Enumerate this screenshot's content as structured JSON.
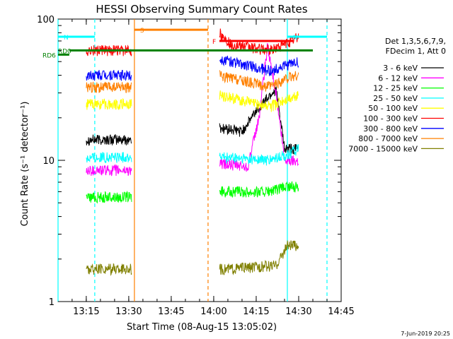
{
  "chart_data": {
    "type": "line",
    "title": "HESSI Observing Summary Count Rates",
    "xlabel": "Start Time (08-Aug-15 13:05:02)",
    "ylabel": "Count Rate (s⁻¹ detector⁻¹)",
    "yscale": "log",
    "ylim": [
      1,
      100
    ],
    "xlim": [
      "13:05:02",
      "14:45:00"
    ],
    "x_ticks": [
      "13:15",
      "13:30",
      "13:45",
      "14:00",
      "14:15",
      "14:30",
      "14:45"
    ],
    "y_ticks": [
      "1",
      "10",
      "100"
    ],
    "legend": {
      "header": [
        "Det 1,3,5,6,7,9,",
        "FDecim 1, Att 0"
      ],
      "placement": "right"
    },
    "series": [
      {
        "name": "3 - 6 keV",
        "color": "#000000",
        "values": [
          [
            "13:15",
            14
          ],
          [
            "13:31",
            14
          ],
          [
            "14:02",
            17
          ],
          [
            "14:10",
            16
          ],
          [
            "14:16",
            24
          ],
          [
            "14:22",
            32
          ],
          [
            "14:25",
            12
          ],
          [
            "14:30",
            12
          ]
        ]
      },
      {
        "name": "6 - 12 keV",
        "color": "#ff00ff",
        "values": [
          [
            "13:15",
            8.5
          ],
          [
            "13:31",
            8.5
          ],
          [
            "14:02",
            9.5
          ],
          [
            "14:12",
            9
          ],
          [
            "14:16",
            20
          ],
          [
            "14:19",
            65
          ],
          [
            "14:22",
            30
          ],
          [
            "14:25",
            10
          ],
          [
            "14:30",
            10
          ]
        ]
      },
      {
        "name": "12 - 25 keV",
        "color": "#00ff00",
        "values": [
          [
            "13:15",
            5.5
          ],
          [
            "13:31",
            5.5
          ],
          [
            "14:02",
            6
          ],
          [
            "14:20",
            6
          ],
          [
            "14:26",
            6.5
          ],
          [
            "14:30",
            6.5
          ]
        ]
      },
      {
        "name": "25 - 50 keV",
        "color": "#00ffff",
        "values": [
          [
            "13:15",
            10.5
          ],
          [
            "13:31",
            10.5
          ],
          [
            "14:02",
            10.5
          ],
          [
            "14:20",
            10
          ],
          [
            "14:26",
            11
          ],
          [
            "14:30",
            12
          ]
        ]
      },
      {
        "name": "50 - 100 keV",
        "color": "#ffff00",
        "values": [
          [
            "13:15",
            25
          ],
          [
            "13:31",
            25
          ],
          [
            "14:02",
            29
          ],
          [
            "14:20",
            24
          ],
          [
            "14:26",
            27
          ],
          [
            "14:30",
            29
          ]
        ]
      },
      {
        "name": "100 - 300 keV",
        "color": "#ff0000",
        "values": [
          [
            "13:15",
            60
          ],
          [
            "13:31",
            60
          ],
          [
            "14:02",
            80
          ],
          [
            "14:06",
            66
          ],
          [
            "14:20",
            60
          ],
          [
            "14:26",
            68
          ],
          [
            "14:30",
            75
          ]
        ]
      },
      {
        "name": "300 - 800 keV",
        "color": "#0000ff",
        "values": [
          [
            "13:15",
            40
          ],
          [
            "13:31",
            40
          ],
          [
            "14:02",
            52
          ],
          [
            "14:10",
            48
          ],
          [
            "14:20",
            43
          ],
          [
            "14:26",
            47
          ],
          [
            "14:30",
            50
          ]
        ]
      },
      {
        "name": "800 - 7000 keV",
        "color": "#ff8000",
        "values": [
          [
            "13:15",
            33
          ],
          [
            "13:31",
            33
          ],
          [
            "14:02",
            40
          ],
          [
            "14:10",
            37
          ],
          [
            "14:20",
            33
          ],
          [
            "14:26",
            38
          ],
          [
            "14:30",
            40
          ]
        ]
      },
      {
        "name": "7000 - 15000 keV",
        "color": "#808000",
        "values": [
          [
            "13:15",
            1.7
          ],
          [
            "13:31",
            1.7
          ],
          [
            "14:04",
            1.7
          ],
          [
            "14:22",
            1.8
          ],
          [
            "14:26",
            2.5
          ],
          [
            "14:30",
            2.5
          ]
        ]
      }
    ],
    "annotations": [
      {
        "label": "N",
        "color": "#00ffff",
        "x_start": "13:05:02",
        "x_end": "13:18:00",
        "y": 75
      },
      {
        "label": "N",
        "color": "#00ffff",
        "x_start": "14:26:00",
        "x_end": "14:40:00",
        "y": 75
      },
      {
        "label": "S",
        "color": "#ff8000",
        "x_start": "13:32:00",
        "x_end": "13:58:00",
        "y": 84
      },
      {
        "label": "F",
        "color": "#ff0000",
        "x_start": "14:02:00",
        "x_end": "14:28:00",
        "y": 70
      },
      {
        "label": "RD0",
        "color": "#008000",
        "x_start": "13:09:00",
        "x_end": "14:35:00",
        "y": 60
      },
      {
        "label": "RD6",
        "color": "#008000",
        "x_start": "13:05:02",
        "x_end": "13:09:00",
        "y": 56
      }
    ],
    "vertical_lines": [
      {
        "x": "13:05:02",
        "color": "#00ffff",
        "style": "solid"
      },
      {
        "x": "13:18:00",
        "color": "#00ffff",
        "style": "dashed"
      },
      {
        "x": "13:32:00",
        "color": "#ff8000",
        "style": "solid"
      },
      {
        "x": "13:58:00",
        "color": "#ff8000",
        "style": "dashed"
      },
      {
        "x": "14:26:00",
        "color": "#00ffff",
        "style": "solid"
      },
      {
        "x": "14:40:00",
        "color": "#00ffff",
        "style": "dashed"
      }
    ],
    "grid": false
  },
  "footer": {
    "date_stamp": "7-Jun-2019 20:25"
  }
}
